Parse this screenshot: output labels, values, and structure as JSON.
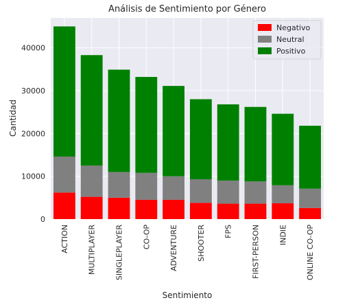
{
  "chart_data": {
    "type": "bar",
    "stacked": true,
    "title": "Análisis de Sentimiento por Género",
    "xlabel": "Sentimiento",
    "ylabel": "Cantidad",
    "ylim": [
      0,
      47000
    ],
    "yticks": [
      0,
      10000,
      20000,
      30000,
      40000
    ],
    "grid": true,
    "legend_position": "top-right",
    "categories": [
      "ACTION",
      "MULTIPLAYER",
      "SINGLEPLAYER",
      "CO-OP",
      "ADVENTURE",
      "SHOOTER",
      "FPS",
      "FIRST-PERSON",
      "INDIE",
      "ONLINE CO-OP"
    ],
    "series": [
      {
        "name": "Negativo",
        "color": "#ff0000",
        "values": [
          6200,
          5200,
          5000,
          4500,
          4500,
          3800,
          3600,
          3600,
          3700,
          2600
        ]
      },
      {
        "name": "Neutral",
        "color": "#808080",
        "values": [
          8400,
          7300,
          6000,
          6300,
          5500,
          5500,
          5400,
          5200,
          4200,
          4500
        ]
      },
      {
        "name": "Positivo",
        "color": "#008000",
        "values": [
          30400,
          25800,
          23900,
          22400,
          21100,
          18700,
          17800,
          17400,
          16700,
          14700
        ]
      }
    ]
  }
}
